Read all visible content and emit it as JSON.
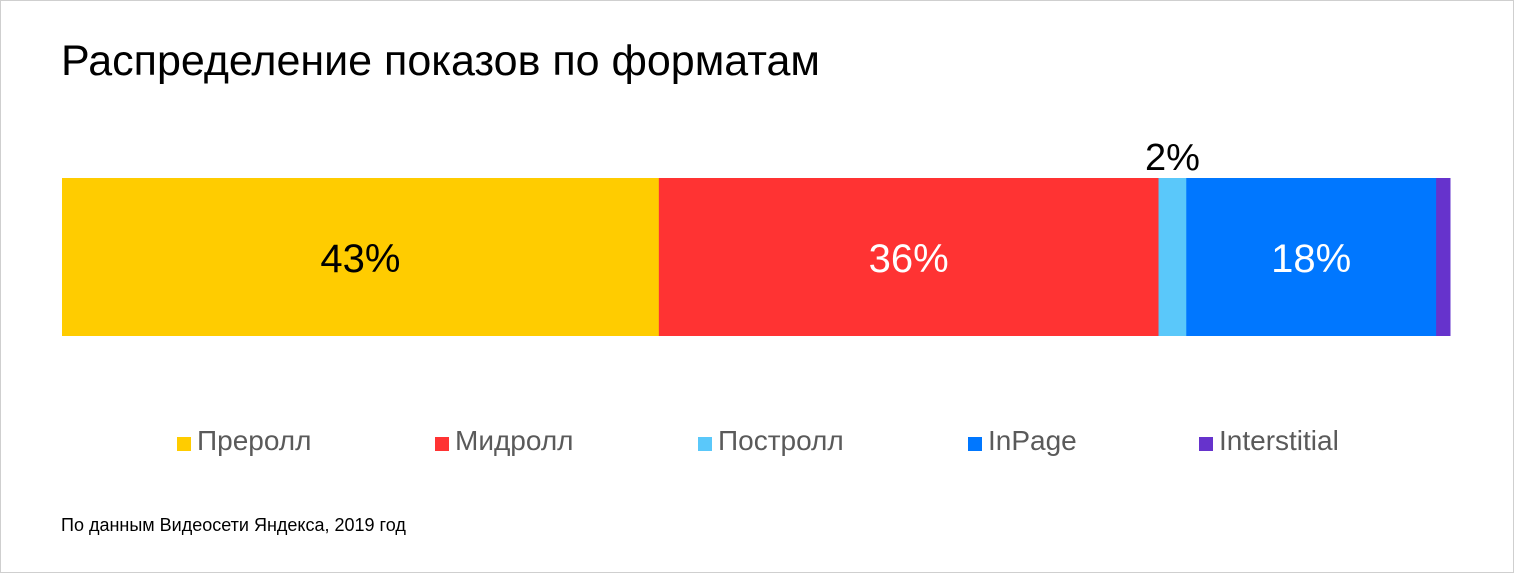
{
  "chart_data": {
    "type": "bar",
    "orientation": "horizontal-stacked",
    "title": "Распределение показов по форматам",
    "categories": [
      "Преролл",
      "Мидролл",
      "Постролл",
      "InPage",
      "Interstitial"
    ],
    "values": [
      43,
      36,
      2,
      18,
      1
    ],
    "data_labels": [
      "43%",
      "36%",
      "2%",
      "18%",
      ""
    ],
    "colors": [
      "#FFCC00",
      "#FF3333",
      "#5AC8FA",
      "#0077FF",
      "#6633CC"
    ],
    "label_colors": [
      "#000000",
      "#FFFFFF",
      "#000000",
      "#FFFFFF",
      "#FFFFFF"
    ],
    "unit": "%",
    "legend_position": "bottom",
    "grid": false
  },
  "footer": {
    "source": "По данным Видеосети Яндекса, 2019 год"
  }
}
